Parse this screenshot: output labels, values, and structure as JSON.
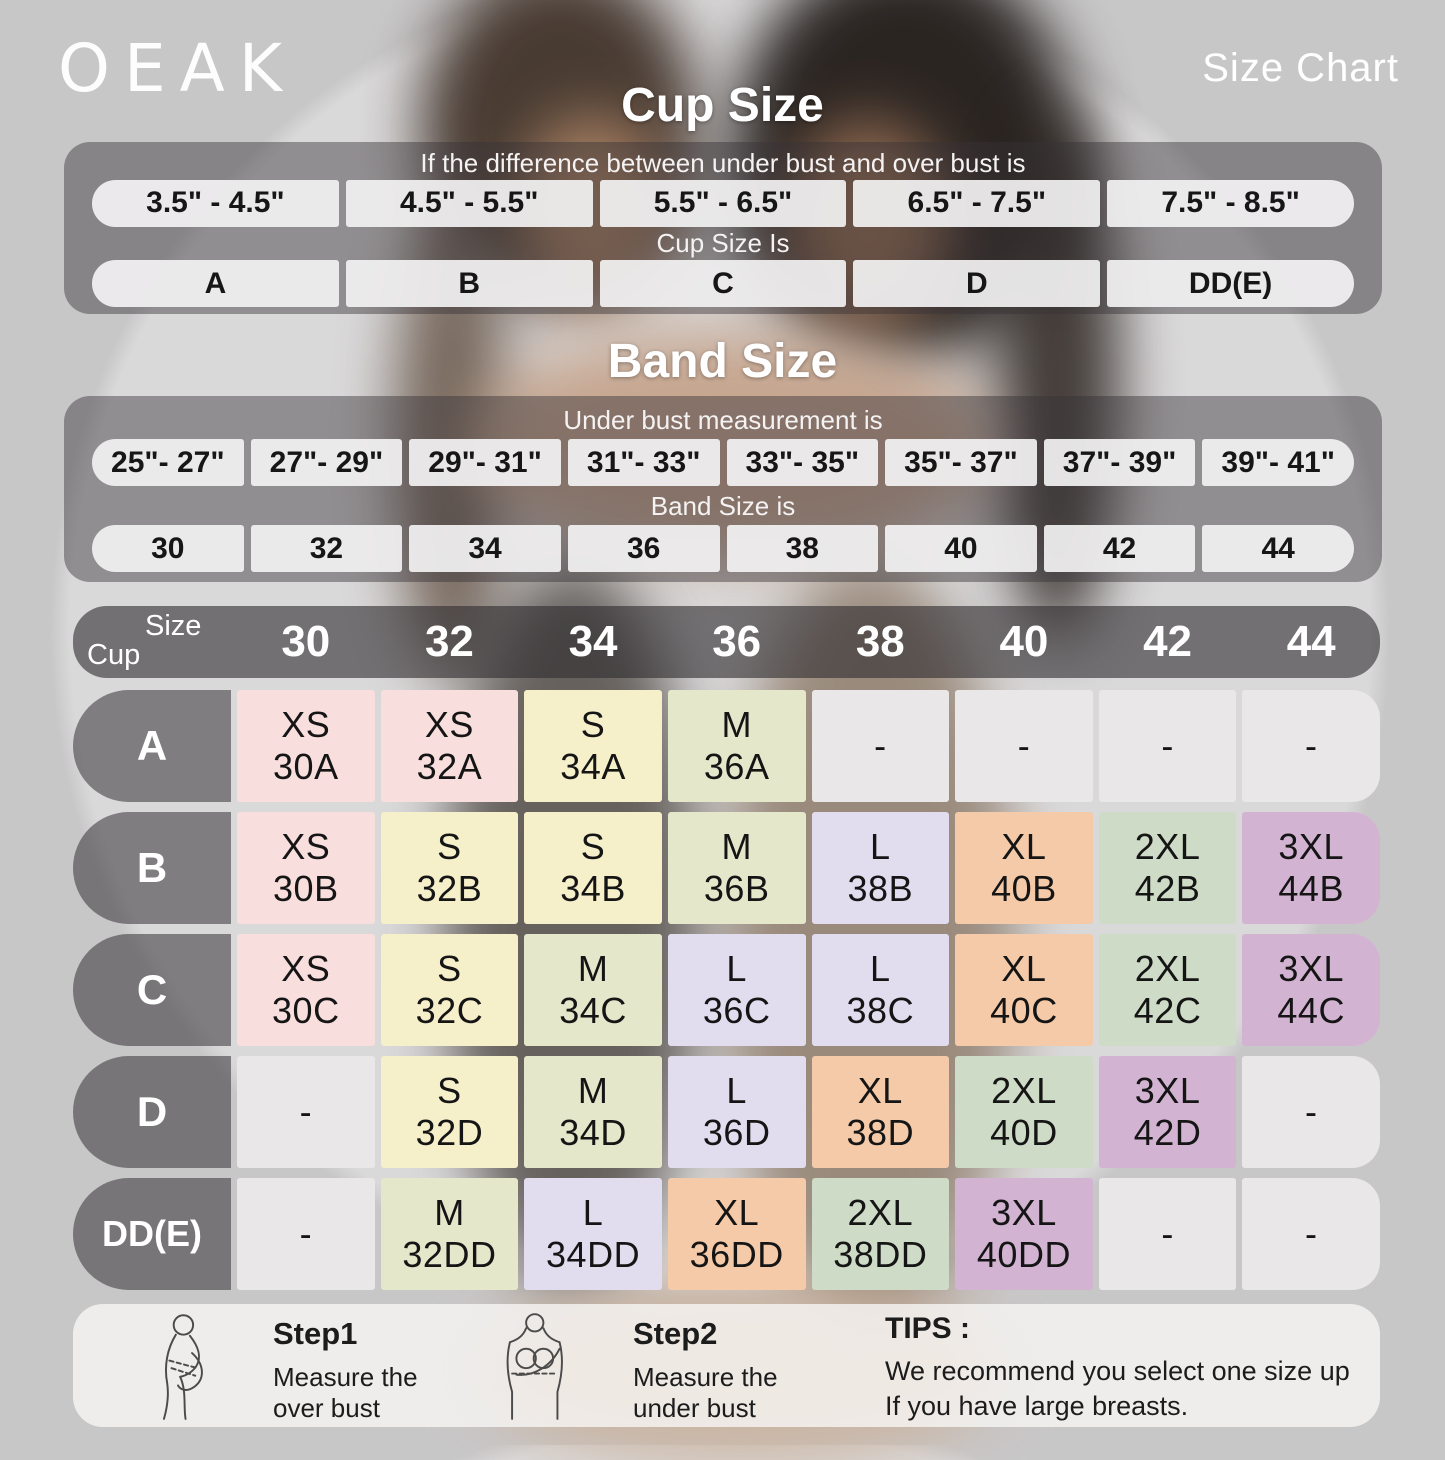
{
  "brand": "OEAK",
  "title": "Size Chart",
  "cup_section": {
    "heading": "Cup Size",
    "condition_label": "If the  difference between under bust and over bust is",
    "ranges": [
      "3.5\" - 4.5\"",
      "4.5\" - 5.5\"",
      "5.5\" - 6.5\"",
      "6.5\" - 7.5\"",
      "7.5\" - 8.5\""
    ],
    "result_label": "Cup Size Is",
    "cups": [
      "A",
      "B",
      "C",
      "D",
      "DD(E)"
    ]
  },
  "band_section": {
    "heading": "Band Size",
    "condition_label": "Under bust measurement is",
    "ranges": [
      "25\"- 27\"",
      "27\"- 29\"",
      "29\"- 31\"",
      "31\"- 33\"",
      "33\"- 35\"",
      "35\"- 37\"",
      "37\"- 39\"",
      "39\"- 41\""
    ],
    "result_label": "Band Size is",
    "bands": [
      "30",
      "32",
      "34",
      "36",
      "38",
      "40",
      "42",
      "44"
    ]
  },
  "matrix": {
    "corner_top": "Size",
    "corner_bottom": "Cup",
    "columns": [
      "30",
      "32",
      "34",
      "36",
      "38",
      "40",
      "42",
      "44"
    ],
    "rows": [
      {
        "cup": "A",
        "cells": [
          {
            "s": "XS",
            "n": "30A",
            "c": "pink"
          },
          {
            "s": "XS",
            "n": "32A",
            "c": "pink"
          },
          {
            "s": "S",
            "n": "34A",
            "c": "yellow"
          },
          {
            "s": "M",
            "n": "36A",
            "c": "green"
          },
          {
            "s": "-",
            "n": "",
            "c": "gray"
          },
          {
            "s": "-",
            "n": "",
            "c": "gray"
          },
          {
            "s": "-",
            "n": "",
            "c": "gray"
          },
          {
            "s": "-",
            "n": "",
            "c": "gray"
          }
        ]
      },
      {
        "cup": "B",
        "cells": [
          {
            "s": "XS",
            "n": "30B",
            "c": "pink"
          },
          {
            "s": "S",
            "n": "32B",
            "c": "yellow"
          },
          {
            "s": "S",
            "n": "34B",
            "c": "yellow"
          },
          {
            "s": "M",
            "n": "36B",
            "c": "green"
          },
          {
            "s": "L",
            "n": "38B",
            "c": "lavender"
          },
          {
            "s": "XL",
            "n": "40B",
            "c": "peach"
          },
          {
            "s": "2XL",
            "n": "42B",
            "c": "sage"
          },
          {
            "s": "3XL",
            "n": "44B",
            "c": "mauve"
          }
        ]
      },
      {
        "cup": "C",
        "cells": [
          {
            "s": "XS",
            "n": "30C",
            "c": "pink"
          },
          {
            "s": "S",
            "n": "32C",
            "c": "yellow"
          },
          {
            "s": "M",
            "n": "34C",
            "c": "green"
          },
          {
            "s": "L",
            "n": "36C",
            "c": "lavender"
          },
          {
            "s": "L",
            "n": "38C",
            "c": "lavender"
          },
          {
            "s": "XL",
            "n": "40C",
            "c": "peach"
          },
          {
            "s": "2XL",
            "n": "42C",
            "c": "sage"
          },
          {
            "s": "3XL",
            "n": "44C",
            "c": "mauve"
          }
        ]
      },
      {
        "cup": "D",
        "cells": [
          {
            "s": "-",
            "n": "",
            "c": "gray"
          },
          {
            "s": "S",
            "n": "32D",
            "c": "yellow"
          },
          {
            "s": "M",
            "n": "34D",
            "c": "green"
          },
          {
            "s": "L",
            "n": "36D",
            "c": "lavender"
          },
          {
            "s": "XL",
            "n": "38D",
            "c": "peach"
          },
          {
            "s": "2XL",
            "n": "40D",
            "c": "sage"
          },
          {
            "s": "3XL",
            "n": "42D",
            "c": "mauve"
          },
          {
            "s": "-",
            "n": "",
            "c": "gray"
          }
        ]
      },
      {
        "cup": "DD(E)",
        "cells": [
          {
            "s": "-",
            "n": "",
            "c": "gray"
          },
          {
            "s": "M",
            "n": "32DD",
            "c": "green"
          },
          {
            "s": "L",
            "n": "34DD",
            "c": "lavender"
          },
          {
            "s": "XL",
            "n": "36DD",
            "c": "peach"
          },
          {
            "s": "2XL",
            "n": "38DD",
            "c": "sage"
          },
          {
            "s": "3XL",
            "n": "40DD",
            "c": "mauve"
          },
          {
            "s": "-",
            "n": "",
            "c": "gray"
          },
          {
            "s": "-",
            "n": "",
            "c": "gray"
          }
        ]
      }
    ]
  },
  "steps": [
    {
      "title": "Step1",
      "line1": "Measure the",
      "line2": "over bust"
    },
    {
      "title": "Step2",
      "line1": "Measure the",
      "line2": "under bust"
    }
  ],
  "tips": {
    "title": "TIPS :",
    "line1": "We recommend you select one size up",
    "line2": "If you have large breasts."
  },
  "colors": {
    "pink": "#f8dedd",
    "yellow": "#f5efca",
    "green": "#e4e7ca",
    "lavender": "#e1dcee",
    "peach": "#f4caa9",
    "sage": "#cedbc6",
    "mauve": "#d2b4d2",
    "gray": "#e9e7e8"
  },
  "chart_data": [
    {
      "type": "table",
      "title": "Cup Size",
      "columns": [
        "Difference between under bust and over bust",
        "Cup size"
      ],
      "rows": [
        [
          "3.5\" - 4.5\"",
          "A"
        ],
        [
          "4.5\" - 5.5\"",
          "B"
        ],
        [
          "5.5\" - 6.5\"",
          "C"
        ],
        [
          "6.5\" - 7.5\"",
          "D"
        ],
        [
          "7.5\" - 8.5\"",
          "DD(E)"
        ]
      ]
    },
    {
      "type": "table",
      "title": "Band Size",
      "columns": [
        "Under bust measurement",
        "Band size"
      ],
      "rows": [
        [
          "25\"- 27\"",
          "30"
        ],
        [
          "27\"- 29\"",
          "32"
        ],
        [
          "29\"- 31\"",
          "34"
        ],
        [
          "31\"- 33\"",
          "36"
        ],
        [
          "33\"- 35\"",
          "38"
        ],
        [
          "35\"- 37\"",
          "40"
        ],
        [
          "37\"- 39\"",
          "42"
        ],
        [
          "39\"- 41\"",
          "44"
        ]
      ]
    },
    {
      "type": "table",
      "title": "Size matrix (Cup x Band)",
      "columns": [
        "Cup",
        "30",
        "32",
        "34",
        "36",
        "38",
        "40",
        "42",
        "44"
      ],
      "rows": [
        [
          "A",
          "XS 30A",
          "XS 32A",
          "S 34A",
          "M 36A",
          "-",
          "-",
          "-",
          "-"
        ],
        [
          "B",
          "XS 30B",
          "S 32B",
          "S 34B",
          "M 36B",
          "L 38B",
          "XL 40B",
          "2XL 42B",
          "3XL 44B"
        ],
        [
          "C",
          "XS 30C",
          "S 32C",
          "M 34C",
          "L 36C",
          "L 38C",
          "XL 40C",
          "2XL 42C",
          "3XL 44C"
        ],
        [
          "D",
          "-",
          "S 32D",
          "M 34D",
          "L 36D",
          "XL 38D",
          "2XL 40D",
          "3XL 42D",
          "-"
        ],
        [
          "DD(E)",
          "-",
          "M 32DD",
          "L 34DD",
          "XL 36DD",
          "2XL 38DD",
          "3XL 40DD",
          "-",
          "-"
        ]
      ]
    }
  ]
}
